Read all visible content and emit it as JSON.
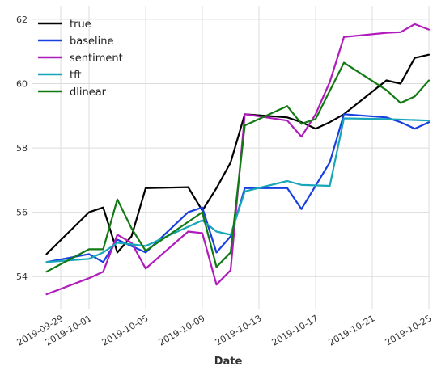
{
  "chart_data": {
    "type": "line",
    "xlabel": "Date",
    "ylabel": "",
    "grid": true,
    "legend_position": "top-left",
    "xlim": [
      "2019-09-27",
      "2019-10-25"
    ],
    "ylim": [
      53.0,
      62.4
    ],
    "x_ticks": [
      "2019-09-29",
      "2019-10-01",
      "2019-10-05",
      "2019-10-09",
      "2019-10-13",
      "2019-10-17",
      "2019-10-21",
      "2019-10-25"
    ],
    "y_ticks": [
      54,
      56,
      58,
      60,
      62
    ],
    "series": [
      {
        "name": "true",
        "color": "#000000",
        "points": [
          [
            "2019-09-28",
            54.7
          ],
          [
            "2019-10-01",
            56.0
          ],
          [
            "2019-10-02",
            56.15
          ],
          [
            "2019-10-03",
            54.75
          ],
          [
            "2019-10-04",
            55.25
          ],
          [
            "2019-10-05",
            56.75
          ],
          [
            "2019-10-08",
            56.78
          ],
          [
            "2019-10-09",
            56.05
          ],
          [
            "2019-10-10",
            56.75
          ],
          [
            "2019-10-11",
            57.55
          ],
          [
            "2019-10-12",
            59.05
          ],
          [
            "2019-10-15",
            58.95
          ],
          [
            "2019-10-16",
            58.8
          ],
          [
            "2019-10-17",
            58.6
          ],
          [
            "2019-10-18",
            58.8
          ],
          [
            "2019-10-19",
            59.05
          ],
          [
            "2019-10-22",
            60.1
          ],
          [
            "2019-10-23",
            60.0
          ],
          [
            "2019-10-24",
            60.8
          ],
          [
            "2019-10-25",
            60.9
          ]
        ]
      },
      {
        "name": "baseline",
        "color": "#1840e0",
        "points": [
          [
            "2019-09-28",
            54.45
          ],
          [
            "2019-10-01",
            54.7
          ],
          [
            "2019-10-02",
            54.45
          ],
          [
            "2019-10-03",
            55.15
          ],
          [
            "2019-10-05",
            54.75
          ],
          [
            "2019-10-08",
            56.0
          ],
          [
            "2019-10-09",
            56.15
          ],
          [
            "2019-10-10",
            54.75
          ],
          [
            "2019-10-11",
            55.25
          ],
          [
            "2019-10-12",
            56.75
          ],
          [
            "2019-10-15",
            56.75
          ],
          [
            "2019-10-16",
            56.1
          ],
          [
            "2019-10-18",
            57.55
          ],
          [
            "2019-10-19",
            59.05
          ],
          [
            "2019-10-22",
            58.95
          ],
          [
            "2019-10-23",
            58.8
          ],
          [
            "2019-10-24",
            58.6
          ],
          [
            "2019-10-25",
            58.8
          ]
        ]
      },
      {
        "name": "sentiment",
        "color": "#b01cbc",
        "points": [
          [
            "2019-09-28",
            53.45
          ],
          [
            "2019-10-01",
            53.95
          ],
          [
            "2019-10-02",
            54.15
          ],
          [
            "2019-10-03",
            55.3
          ],
          [
            "2019-10-04",
            55.05
          ],
          [
            "2019-10-05",
            54.25
          ],
          [
            "2019-10-08",
            55.4
          ],
          [
            "2019-10-09",
            55.35
          ],
          [
            "2019-10-10",
            53.75
          ],
          [
            "2019-10-11",
            54.2
          ],
          [
            "2019-10-12",
            59.05
          ],
          [
            "2019-10-15",
            58.85
          ],
          [
            "2019-10-16",
            58.35
          ],
          [
            "2019-10-17",
            59.05
          ],
          [
            "2019-10-18",
            60.05
          ],
          [
            "2019-10-19",
            61.45
          ],
          [
            "2019-10-22",
            61.58
          ],
          [
            "2019-10-23",
            61.6
          ],
          [
            "2019-10-24",
            61.85
          ],
          [
            "2019-10-25",
            61.68
          ]
        ]
      },
      {
        "name": "tft",
        "color": "#17a6b8",
        "points": [
          [
            "2019-09-28",
            54.45
          ],
          [
            "2019-10-01",
            54.55
          ],
          [
            "2019-10-02",
            54.75
          ],
          [
            "2019-10-03",
            55.05
          ],
          [
            "2019-10-04",
            55.0
          ],
          [
            "2019-10-05",
            54.95
          ],
          [
            "2019-10-07",
            55.35
          ],
          [
            "2019-10-09",
            55.75
          ],
          [
            "2019-10-10",
            55.4
          ],
          [
            "2019-10-11",
            55.3
          ],
          [
            "2019-10-12",
            56.65
          ],
          [
            "2019-10-15",
            56.97
          ],
          [
            "2019-10-16",
            56.85
          ],
          [
            "2019-10-18",
            56.82
          ],
          [
            "2019-10-19",
            58.92
          ],
          [
            "2019-10-22",
            58.9
          ],
          [
            "2019-10-25",
            58.85
          ]
        ]
      },
      {
        "name": "dlinear",
        "color": "#127a12",
        "points": [
          [
            "2019-09-28",
            54.15
          ],
          [
            "2019-10-01",
            54.85
          ],
          [
            "2019-10-02",
            54.85
          ],
          [
            "2019-10-03",
            56.4
          ],
          [
            "2019-10-04",
            55.5
          ],
          [
            "2019-10-05",
            54.8
          ],
          [
            "2019-10-09",
            56.0
          ],
          [
            "2019-10-10",
            54.3
          ],
          [
            "2019-10-11",
            54.75
          ],
          [
            "2019-10-12",
            58.7
          ],
          [
            "2019-10-15",
            59.3
          ],
          [
            "2019-10-16",
            58.75
          ],
          [
            "2019-10-17",
            58.9
          ],
          [
            "2019-10-19",
            60.65
          ],
          [
            "2019-10-22",
            59.8
          ],
          [
            "2019-10-23",
            59.4
          ],
          [
            "2019-10-24",
            59.6
          ],
          [
            "2019-10-25",
            60.1
          ]
        ]
      }
    ]
  }
}
